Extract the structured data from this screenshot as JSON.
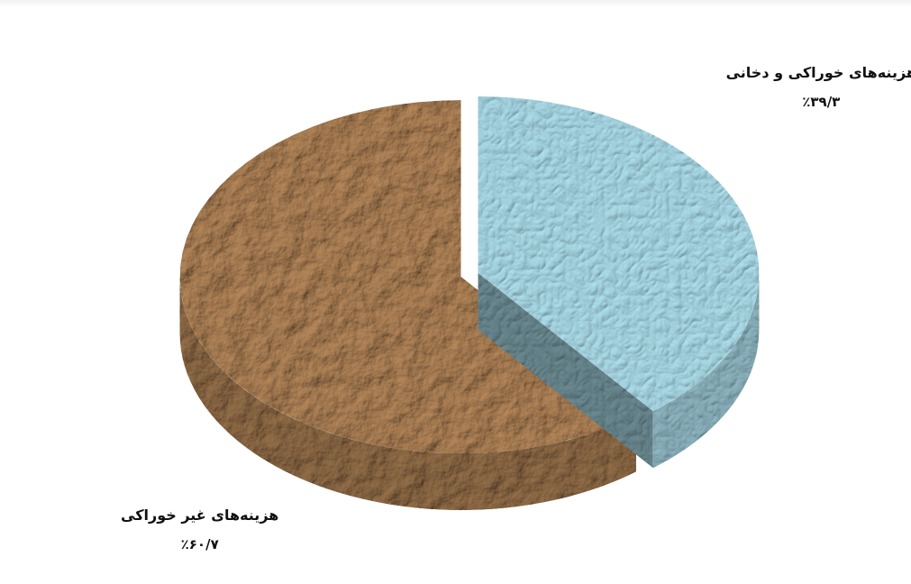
{
  "chart_data": {
    "type": "pie",
    "style": "3d-exploded",
    "slices": [
      {
        "label": "هزینه‌های خوراکی و دخانی",
        "value": 39.3,
        "display": "٪۳۹/۳",
        "color": "#a6d6e3"
      },
      {
        "label": "هزینه‌های غیر خوراکی",
        "value": 60.7,
        "display": "٪۶۰/۷",
        "color": "#a77c52"
      }
    ]
  }
}
